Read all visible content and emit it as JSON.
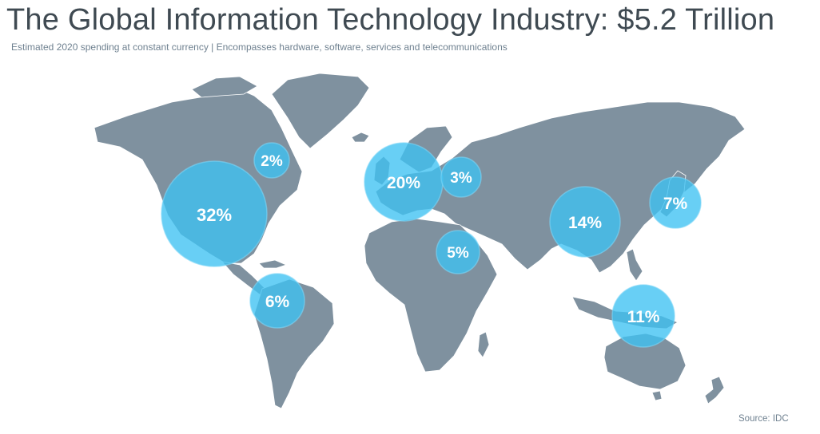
{
  "header": {
    "title": "The Global Information Technology Industry: $5.2 Trillion",
    "subtitle": "Estimated 2020 spending at constant currency | Encompasses hardware, software, services and telecommunications"
  },
  "footer": {
    "source": "Source: IDC"
  },
  "colors": {
    "land": "#7f919f",
    "bubble": "#3ec1f2",
    "title": "#3f4a52",
    "subtitle": "#6f8190"
  },
  "regions": [
    {
      "id": "canada",
      "label": "2%",
      "value": 2
    },
    {
      "id": "north-america",
      "label": "32%",
      "value": 32
    },
    {
      "id": "latin-america",
      "label": "6%",
      "value": 6
    },
    {
      "id": "western-europe",
      "label": "20%",
      "value": 20
    },
    {
      "id": "eastern-europe",
      "label": "3%",
      "value": 3
    },
    {
      "id": "middle-east-africa",
      "label": "5%",
      "value": 5
    },
    {
      "id": "china",
      "label": "14%",
      "value": 14
    },
    {
      "id": "japan",
      "label": "7%",
      "value": 7
    },
    {
      "id": "asia-pacific-other",
      "label": "11%",
      "value": 11
    }
  ]
}
